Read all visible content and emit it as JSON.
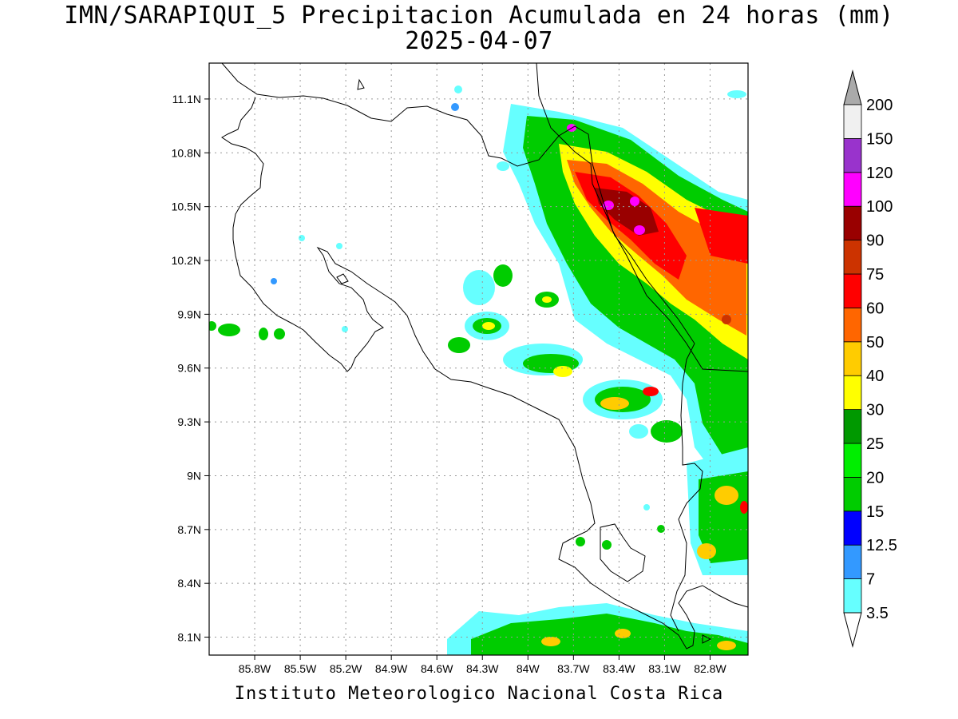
{
  "title": "IMN/SARAPIQUI_5 Precipitacion Acumulada en 24 horas (mm)",
  "date": "2025-04-07",
  "credit": "Instituto Meteorologico Nacional Costa Rica",
  "map": {
    "lon_range": [
      -86.1,
      -82.55
    ],
    "lat_range": [
      8.0,
      11.3
    ],
    "lon_ticks": [
      "85.8W",
      "85.5W",
      "85.2W",
      "84.9W",
      "84.6W",
      "84.3W",
      "84W",
      "83.7W",
      "83.4W",
      "83.1W",
      "82.8W"
    ],
    "lat_ticks": [
      "11.1N",
      "10.8N",
      "10.5N",
      "10.2N",
      "9.9N",
      "9.6N",
      "9.3N",
      "9N",
      "8.7N",
      "8.4N",
      "8.1N"
    ],
    "grid": "dotted"
  },
  "colorbar": {
    "levels": [
      "3.5",
      "7",
      "12.5",
      "15",
      "20",
      "25",
      "30",
      "40",
      "50",
      "60",
      "75",
      "90",
      "100",
      "120",
      "150",
      "200"
    ],
    "colors": [
      "#66ffff",
      "#3399ff",
      "#0000ff",
      "#00cc00",
      "#00ee00",
      "#009900",
      "#ffff00",
      "#ffcc00",
      "#ff6600",
      "#ff0000",
      "#cc3300",
      "#990000",
      "#ff00ff",
      "#9933cc",
      "#f0f0f0",
      "#aaaaaa"
    ]
  }
}
